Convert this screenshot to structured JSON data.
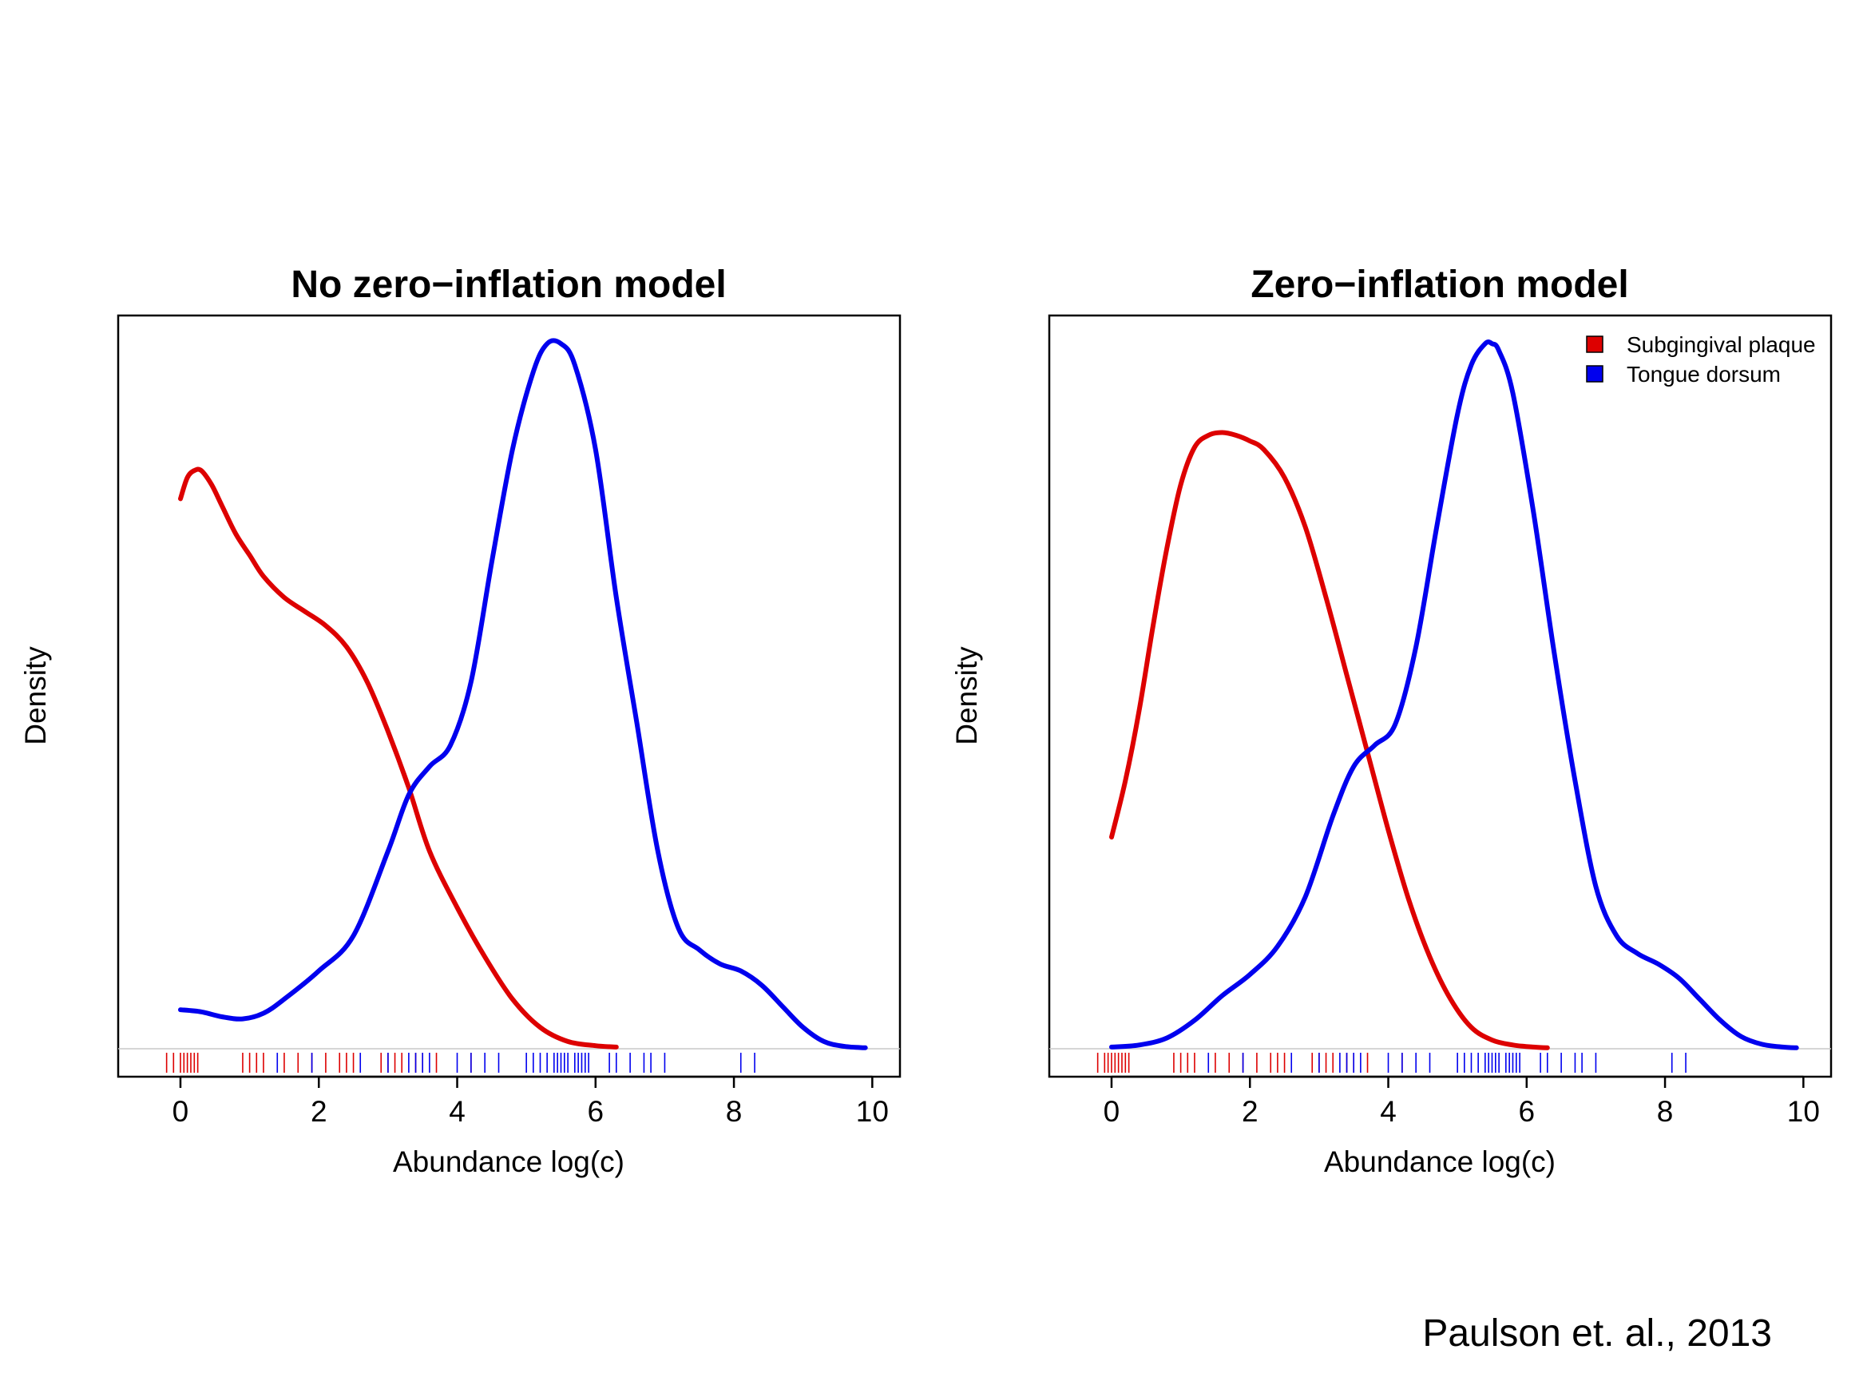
{
  "citation": "Paulson et. al., 2013",
  "colors": {
    "plaque": "#dd0000",
    "tongue": "#0000ee"
  },
  "chart_data": [
    {
      "type": "line",
      "title": "No zero−inflation model",
      "xlabel": "Abundance log(c)",
      "ylabel": "Density",
      "xlim": [
        -0.9,
        10.4
      ],
      "ylim": [
        -0.04,
        1.04
      ],
      "xticks": [
        "0",
        "2",
        "4",
        "6",
        "8",
        "10"
      ],
      "grid": false,
      "legend": null,
      "series": [
        {
          "name": "Subgingival plaque",
          "color": "#dd0000",
          "x": [
            0,
            0.1,
            0.2,
            0.3,
            0.45,
            0.6,
            0.8,
            1.0,
            1.2,
            1.5,
            1.8,
            2.1,
            2.4,
            2.7,
            3.0,
            3.3,
            3.6,
            4.0,
            4.4,
            4.8,
            5.2,
            5.6,
            6.0,
            6.3
          ],
          "y": [
            0.78,
            0.81,
            0.82,
            0.82,
            0.8,
            0.77,
            0.73,
            0.7,
            0.67,
            0.64,
            0.62,
            0.6,
            0.57,
            0.52,
            0.45,
            0.37,
            0.28,
            0.2,
            0.13,
            0.07,
            0.03,
            0.01,
            0.004,
            0.002
          ],
          "rug": [
            -0.2,
            -0.1,
            0.0,
            0.05,
            0.1,
            0.15,
            0.2,
            0.25,
            0.9,
            1.0,
            1.1,
            1.2,
            1.5,
            1.7,
            1.9,
            2.1,
            2.3,
            2.4,
            2.5,
            2.9,
            3.0,
            3.1,
            3.2,
            3.4,
            3.5,
            3.7,
            4.2
          ]
        },
        {
          "name": "Tongue dorsum",
          "color": "#0000ee",
          "x": [
            0,
            0.3,
            0.6,
            0.9,
            1.2,
            1.5,
            2.0,
            2.5,
            3.0,
            3.3,
            3.6,
            3.9,
            4.2,
            4.5,
            4.8,
            5.1,
            5.3,
            5.5,
            5.7,
            6.0,
            6.3,
            6.6,
            6.9,
            7.2,
            7.5,
            7.8,
            8.1,
            8.4,
            8.7,
            9.0,
            9.3,
            9.6,
            9.9
          ],
          "y": [
            0.055,
            0.052,
            0.045,
            0.042,
            0.05,
            0.07,
            0.11,
            0.16,
            0.28,
            0.36,
            0.4,
            0.43,
            0.52,
            0.69,
            0.85,
            0.96,
            1.0,
            1.0,
            0.97,
            0.85,
            0.64,
            0.46,
            0.28,
            0.17,
            0.14,
            0.12,
            0.11,
            0.09,
            0.06,
            0.03,
            0.01,
            0.003,
            0.001
          ],
          "rug": [
            1.4,
            1.9,
            2.6,
            3.0,
            3.3,
            3.4,
            3.5,
            3.6,
            4.0,
            4.2,
            4.4,
            4.6,
            5.0,
            5.1,
            5.2,
            5.3,
            5.4,
            5.45,
            5.5,
            5.55,
            5.6,
            5.7,
            5.75,
            5.8,
            5.85,
            5.9,
            6.2,
            6.3,
            6.5,
            6.7,
            6.8,
            7.0,
            8.1,
            8.3
          ]
        }
      ]
    },
    {
      "type": "line",
      "title": "Zero−inflation model",
      "xlabel": "Abundance log(c)",
      "ylabel": "Density",
      "xlim": [
        -0.9,
        10.4
      ],
      "ylim": [
        -0.04,
        1.04
      ],
      "xticks": [
        "0",
        "2",
        "4",
        "6",
        "8",
        "10"
      ],
      "grid": false,
      "legend": "top-right",
      "series": [
        {
          "name": "Subgingival plaque",
          "color": "#dd0000",
          "x": [
            0,
            0.2,
            0.4,
            0.6,
            0.8,
            1.0,
            1.2,
            1.4,
            1.6,
            1.8,
            2.0,
            2.2,
            2.5,
            2.8,
            3.1,
            3.4,
            3.7,
            4.0,
            4.3,
            4.6,
            4.9,
            5.2,
            5.5,
            5.8,
            6.1,
            6.3
          ],
          "y": [
            0.3,
            0.38,
            0.48,
            0.6,
            0.71,
            0.8,
            0.853,
            0.87,
            0.874,
            0.87,
            0.862,
            0.85,
            0.81,
            0.74,
            0.64,
            0.53,
            0.42,
            0.31,
            0.21,
            0.13,
            0.07,
            0.03,
            0.012,
            0.005,
            0.002,
            0.001
          ],
          "rug": [
            -0.2,
            -0.1,
            -0.05,
            0.0,
            0.05,
            0.1,
            0.15,
            0.2,
            0.25,
            0.9,
            1.0,
            1.1,
            1.2,
            1.5,
            1.7,
            1.9,
            2.1,
            2.3,
            2.4,
            2.5,
            2.9,
            3.0,
            3.1,
            3.2,
            3.4,
            3.5,
            3.7,
            4.2
          ]
        },
        {
          "name": "Tongue dorsum",
          "color": "#0000ee",
          "x": [
            0,
            0.4,
            0.8,
            1.2,
            1.6,
            2.0,
            2.4,
            2.8,
            3.2,
            3.5,
            3.8,
            4.1,
            4.4,
            4.7,
            5.0,
            5.2,
            5.4,
            5.5,
            5.6,
            5.8,
            6.1,
            6.4,
            6.7,
            7.0,
            7.3,
            7.6,
            7.9,
            8.2,
            8.5,
            8.8,
            9.1,
            9.4,
            9.7,
            9.9
          ],
          "y": [
            0.002,
            0.005,
            0.015,
            0.04,
            0.075,
            0.105,
            0.145,
            0.215,
            0.33,
            0.4,
            0.43,
            0.46,
            0.57,
            0.74,
            0.9,
            0.97,
            1.0,
            1.0,
            0.99,
            0.93,
            0.76,
            0.56,
            0.38,
            0.23,
            0.16,
            0.135,
            0.12,
            0.1,
            0.07,
            0.04,
            0.017,
            0.006,
            0.002,
            0.001
          ],
          "rug": [
            1.4,
            1.9,
            2.6,
            3.0,
            3.3,
            3.4,
            3.5,
            3.6,
            4.0,
            4.2,
            4.4,
            4.6,
            5.0,
            5.1,
            5.2,
            5.3,
            5.4,
            5.45,
            5.5,
            5.55,
            5.6,
            5.7,
            5.75,
            5.8,
            5.85,
            5.9,
            6.2,
            6.3,
            6.5,
            6.7,
            6.8,
            7.0,
            8.1,
            8.3
          ]
        }
      ]
    }
  ]
}
